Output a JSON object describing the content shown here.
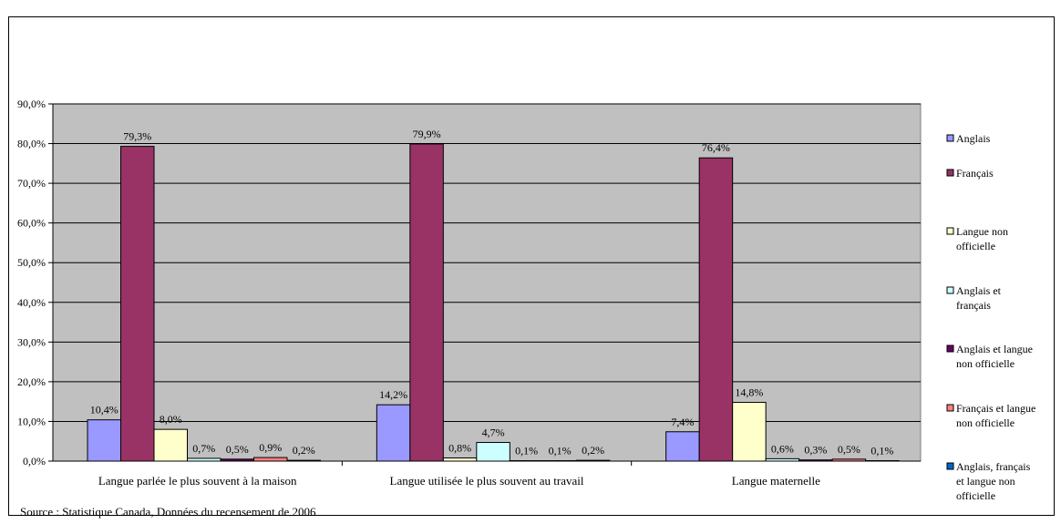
{
  "chart_data": {
    "type": "bar",
    "categories": [
      "Langue parlée le plus souvent à la maison",
      "Langue utilisée le plus souvent au travail",
      "Langue maternelle"
    ],
    "series": [
      {
        "name": "Anglais",
        "color": "#9999ff",
        "values": [
          10.4,
          14.2,
          7.4
        ],
        "labels": [
          "10,4%",
          "14,2%",
          "7,4%"
        ]
      },
      {
        "name": "Français",
        "color": "#993366",
        "values": [
          79.3,
          79.9,
          76.4
        ],
        "labels": [
          "79,3%",
          "79,9%",
          "76,4%"
        ]
      },
      {
        "name": "Langue non officielle",
        "color": "#ffffcc",
        "values": [
          8.0,
          0.8,
          14.8
        ],
        "labels": [
          "8,0%",
          "0,8%",
          "14,8%"
        ]
      },
      {
        "name": "Anglais et français",
        "color": "#ccffff",
        "values": [
          0.7,
          4.7,
          0.6
        ],
        "labels": [
          "0,7%",
          "4,7%",
          "0,6%"
        ]
      },
      {
        "name": "Anglais et langue non officielle",
        "color": "#660066",
        "values": [
          0.5,
          0.1,
          0.3
        ],
        "labels": [
          "0,5%",
          "0,1%",
          "0,3%"
        ]
      },
      {
        "name": "Français et langue non officielle",
        "color": "#ff8080",
        "values": [
          0.9,
          0.1,
          0.5
        ],
        "labels": [
          "0,9%",
          "0,1%",
          "0,5%"
        ]
      },
      {
        "name": "Anglais, français et langue non officielle",
        "color": "#0066cc",
        "values": [
          0.2,
          0.2,
          0.1
        ],
        "labels": [
          "0,2%",
          "0,2%",
          "0,1%"
        ]
      }
    ],
    "y_ticks": [
      "0,0%",
      "10,0%",
      "20,0%",
      "30,0%",
      "40,0%",
      "50,0%",
      "60,0%",
      "70,0%",
      "80,0%",
      "90,0%"
    ],
    "ylim": [
      0,
      90
    ],
    "plot_background": "#c0c0c0",
    "grid": true,
    "legend_position": "right",
    "legend_lines": [
      [
        "Anglais"
      ],
      [
        "Français"
      ],
      [
        "Langue non",
        "officielle"
      ],
      [
        "Anglais et",
        "français"
      ],
      [
        "Anglais et langue",
        "non officielle"
      ],
      [
        "Français et langue",
        "non officielle"
      ],
      [
        "Anglais, français",
        "et langue non",
        "officielle"
      ]
    ]
  },
  "source": "Source : Statistique Canada, Données du recensement de 2006"
}
